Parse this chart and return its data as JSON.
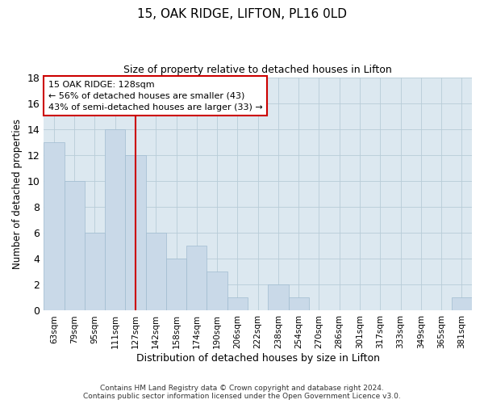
{
  "title": "15, OAK RIDGE, LIFTON, PL16 0LD",
  "subtitle": "Size of property relative to detached houses in Lifton",
  "xlabel": "Distribution of detached houses by size in Lifton",
  "ylabel": "Number of detached properties",
  "categories": [
    "63sqm",
    "79sqm",
    "95sqm",
    "111sqm",
    "127sqm",
    "142sqm",
    "158sqm",
    "174sqm",
    "190sqm",
    "206sqm",
    "222sqm",
    "238sqm",
    "254sqm",
    "270sqm",
    "286sqm",
    "301sqm",
    "317sqm",
    "333sqm",
    "349sqm",
    "365sqm",
    "381sqm"
  ],
  "values": [
    13,
    10,
    6,
    14,
    12,
    6,
    4,
    5,
    3,
    1,
    0,
    2,
    1,
    0,
    0,
    0,
    0,
    0,
    0,
    0,
    1
  ],
  "bar_color": "#c9d9e8",
  "bar_edge_color": "#a0bcd0",
  "highlight_index": 4,
  "highlight_line_color": "#cc0000",
  "ylim": [
    0,
    18
  ],
  "yticks": [
    0,
    2,
    4,
    6,
    8,
    10,
    12,
    14,
    16,
    18
  ],
  "annotation_text": "15 OAK RIDGE: 128sqm\n← 56% of detached houses are smaller (43)\n43% of semi-detached houses are larger (33) →",
  "annotation_box_color": "#ffffff",
  "annotation_box_edge": "#cc0000",
  "footer": "Contains HM Land Registry data © Crown copyright and database right 2024.\nContains public sector information licensed under the Open Government Licence v3.0.",
  "bg_color": "#ffffff",
  "plot_bg_color": "#dce8f0",
  "grid_color": "#b8ccd8"
}
